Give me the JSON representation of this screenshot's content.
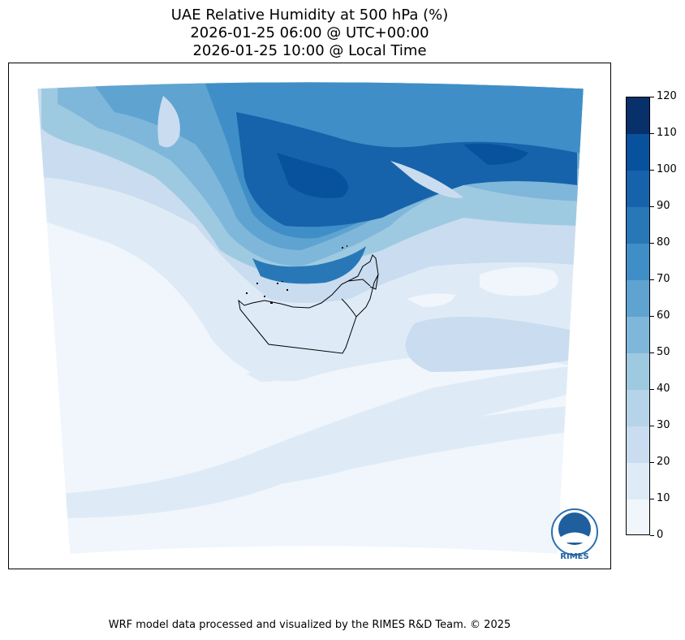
{
  "title": {
    "line1": "UAE Relative Humidity at 500 hPa (%)",
    "line2": "2026-01-25 06:00 @ UTC+00:00",
    "line3": "2026-01-25 10:00 @ Local Time"
  },
  "colorbar": {
    "ticks": [
      "0",
      "10",
      "20",
      "30",
      "40",
      "50",
      "60",
      "70",
      "80",
      "90",
      "100",
      "110",
      "120"
    ],
    "levels": [
      0,
      10,
      20,
      30,
      40,
      50,
      60,
      70,
      80,
      90,
      100,
      110,
      120
    ],
    "colors": [
      "#f0f6fc",
      "#deebf7",
      "#cadcef",
      "#b6d4e9",
      "#9ecae1",
      "#7fb7da",
      "#5fa3d1",
      "#3f8ec7",
      "#2878b8",
      "#1663ab",
      "#08519c",
      "#08306b"
    ]
  },
  "logo": {
    "text": "RIMES"
  },
  "footer": "WRF model data processed and visualized by the RIMES R&D Team. © 2025"
}
